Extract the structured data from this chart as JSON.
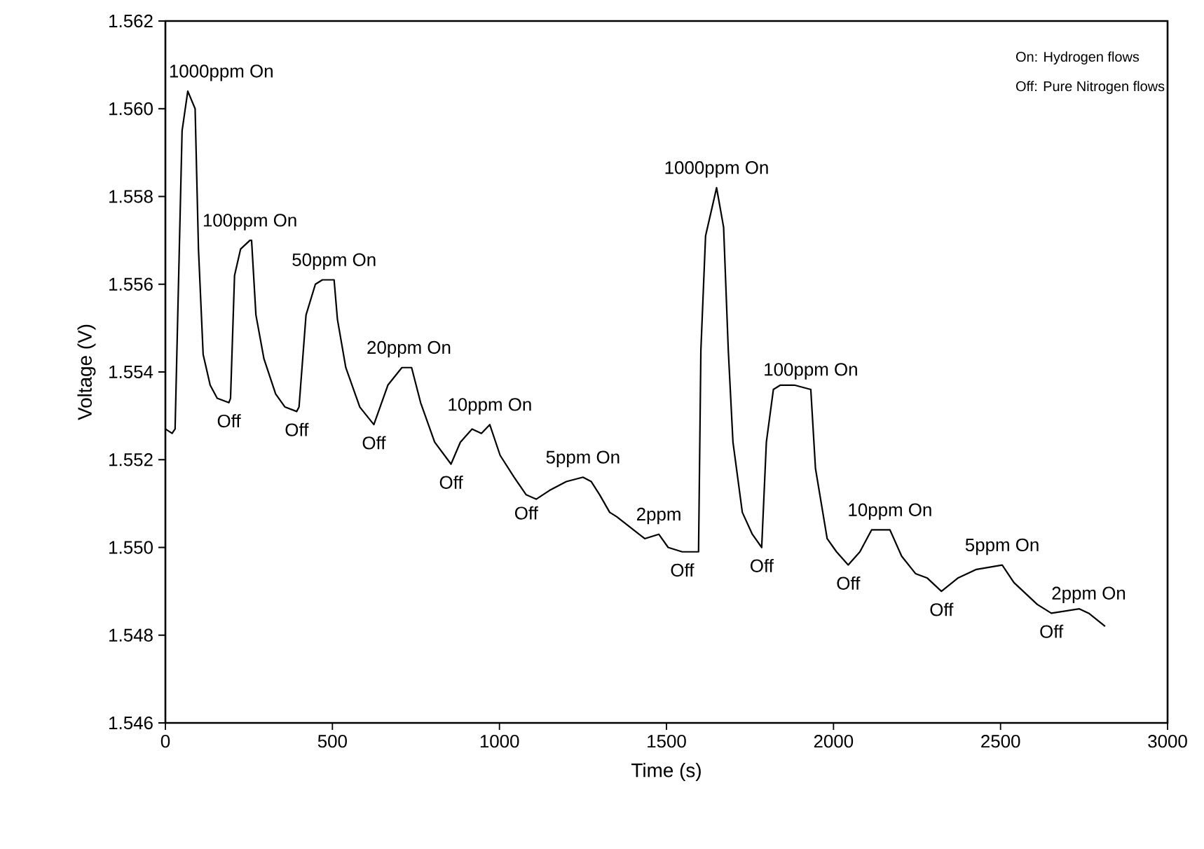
{
  "chart_data": {
    "type": "line",
    "xlabel": "Time (s)",
    "ylabel": "Voltage (V)",
    "xlim": [
      0,
      3000
    ],
    "xticks": [
      0,
      500,
      1000,
      1500,
      2000,
      2500,
      3000
    ],
    "ylim": [
      1.546,
      1.562
    ],
    "yticks": [
      {
        "value": 1.546,
        "label": "1.546"
      },
      {
        "value": 1.548,
        "label": "1.548"
      },
      {
        "value": 1.55,
        "label": "1.550"
      },
      {
        "value": 1.552,
        "label": "1.552"
      },
      {
        "value": 1.554,
        "label": "1.554"
      },
      {
        "value": 1.556,
        "label": "1.556"
      },
      {
        "value": 1.558,
        "label": "1.558"
      },
      {
        "value": 1.56,
        "label": "1.560"
      },
      {
        "value": 1.562,
        "label": "1.562"
      }
    ],
    "grid": false,
    "marker": "none",
    "line_style": "solid",
    "series": [
      {
        "color": "#000000",
        "x": [
          0,
          20,
          29,
          50,
          67,
          89,
          99,
          113,
          134,
          155,
          190,
          195,
          207,
          225,
          253,
          258,
          271,
          295,
          330,
          358,
          393,
          400,
          421,
          449,
          470,
          505,
          515,
          540,
          582,
          624,
          666,
          708,
          729,
          737,
          764,
          806,
          855,
          883,
          918,
          946,
          971,
          1002,
          1044,
          1080,
          1110,
          1150,
          1200,
          1250,
          1275,
          1300,
          1330,
          1351,
          1435,
          1477,
          1505,
          1547,
          1596,
          1603,
          1617,
          1650,
          1671,
          1685,
          1699,
          1727,
          1757,
          1785,
          1799,
          1820,
          1841,
          1883,
          1932,
          1946,
          1981,
          2009,
          2044,
          2079,
          2114,
          2169,
          2204,
          2246,
          2281,
          2323,
          2372,
          2428,
          2505,
          2540,
          2610,
          2652,
          2736,
          2764,
          2813
        ],
        "values": [
          1.5527,
          1.5526,
          1.5527,
          1.5595,
          1.5604,
          1.56,
          1.5568,
          1.5544,
          1.5537,
          1.5534,
          1.5533,
          1.5534,
          1.5562,
          1.5568,
          1.557,
          1.557,
          1.5553,
          1.5543,
          1.5535,
          1.5532,
          1.5531,
          1.5532,
          1.5553,
          1.556,
          1.5561,
          1.5561,
          1.5552,
          1.5541,
          1.5532,
          1.5528,
          1.5537,
          1.5541,
          1.5541,
          1.5541,
          1.5533,
          1.5524,
          1.5519,
          1.5524,
          1.5527,
          1.5526,
          1.5528,
          1.5521,
          1.5516,
          1.5512,
          1.5511,
          1.5513,
          1.5515,
          1.5516,
          1.5515,
          1.5512,
          1.5508,
          1.5507,
          1.5502,
          1.5503,
          1.55,
          1.5499,
          1.5499,
          1.5545,
          1.5571,
          1.5582,
          1.5573,
          1.5545,
          1.5524,
          1.5508,
          1.5503,
          1.55,
          1.5524,
          1.5536,
          1.5537,
          1.5537,
          1.5536,
          1.5518,
          1.5502,
          1.5499,
          1.5496,
          1.5499,
          1.5504,
          1.5504,
          1.5498,
          1.5494,
          1.5493,
          1.549,
          1.5493,
          1.5495,
          1.5496,
          1.5492,
          1.5487,
          1.5485,
          1.5486,
          1.5485,
          1.5482
        ]
      }
    ],
    "annotations": [
      {
        "text": "1000ppm On",
        "x": 67,
        "y": 1.5604
      },
      {
        "text": "100ppm On",
        "x": 253,
        "y": 1.557
      },
      {
        "text": "50ppm On",
        "x": 505,
        "y": 1.5561
      },
      {
        "text": "20ppm On",
        "x": 729,
        "y": 1.5541
      },
      {
        "text": "10ppm On",
        "x": 971,
        "y": 1.5528
      },
      {
        "text": "5ppm On",
        "x": 1250,
        "y": 1.5516
      },
      {
        "text": "2ppm",
        "x": 1477,
        "y": 1.5503
      },
      {
        "text": "1000ppm On",
        "x": 1650,
        "y": 1.5582
      },
      {
        "text": "100ppm On",
        "x": 1932,
        "y": 1.5536
      },
      {
        "text": "10ppm On",
        "x": 2169,
        "y": 1.5504
      },
      {
        "text": "5ppm On",
        "x": 2505,
        "y": 1.5496
      },
      {
        "text": "2ppm On",
        "x": 2764,
        "y": 1.5485
      },
      {
        "text": "Off",
        "x": 190,
        "y": 1.5533
      },
      {
        "text": "Off",
        "x": 393,
        "y": 1.5531
      },
      {
        "text": "Off",
        "x": 624,
        "y": 1.5528
      },
      {
        "text": "Off",
        "x": 855,
        "y": 1.5519
      },
      {
        "text": "Off",
        "x": 1080,
        "y": 1.5512
      },
      {
        "text": "Off",
        "x": 1547,
        "y": 1.5499
      },
      {
        "text": "Off",
        "x": 1785,
        "y": 1.55
      },
      {
        "text": "Off",
        "x": 2044,
        "y": 1.5496
      },
      {
        "text": "Off",
        "x": 2323,
        "y": 1.549
      },
      {
        "text": "Off",
        "x": 2652,
        "y": 1.5485
      },
      "On: Hydrogen flows",
      "Off: Pure Nitrogen flows"
    ]
  }
}
